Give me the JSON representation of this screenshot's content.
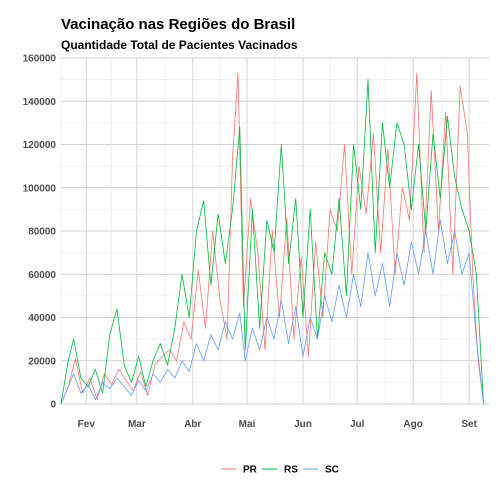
{
  "chart_data": {
    "type": "line",
    "title": "Vacinação nas Regiões do Brasil",
    "subtitle": "Quantidade Total de Pacientes Vacinados",
    "xlabel": "",
    "ylabel": "",
    "x_range": [
      "2021-01-18",
      "2021-09-12"
    ],
    "x_ticks": [
      {
        "date": "2021-02-01",
        "label": "Fev"
      },
      {
        "date": "2021-03-01",
        "label": "Mar"
      },
      {
        "date": "2021-04-01",
        "label": "Abr"
      },
      {
        "date": "2021-05-01",
        "label": "Mai"
      },
      {
        "date": "2021-06-01",
        "label": "Jun"
      },
      {
        "date": "2021-07-01",
        "label": "Jul"
      },
      {
        "date": "2021-08-01",
        "label": "Ago"
      },
      {
        "date": "2021-09-01",
        "label": "Set"
      }
    ],
    "ylim": [
      0,
      160000
    ],
    "y_ticks": [
      0,
      20000,
      40000,
      60000,
      80000,
      100000,
      120000,
      140000,
      160000
    ],
    "grid": true,
    "legend_position": "bottom",
    "series": [
      {
        "name": "PR",
        "color": "#F8766D",
        "points": [
          [
            "2021-01-18",
            0
          ],
          [
            "2021-01-22",
            8000
          ],
          [
            "2021-01-26",
            21000
          ],
          [
            "2021-01-30",
            5000
          ],
          [
            "2021-02-03",
            12000
          ],
          [
            "2021-02-07",
            2000
          ],
          [
            "2021-02-11",
            14000
          ],
          [
            "2021-02-15",
            9000
          ],
          [
            "2021-02-19",
            16000
          ],
          [
            "2021-02-23",
            11000
          ],
          [
            "2021-02-27",
            6000
          ],
          [
            "2021-03-03",
            15000
          ],
          [
            "2021-03-07",
            4000
          ],
          [
            "2021-03-11",
            18000
          ],
          [
            "2021-03-15",
            22000
          ],
          [
            "2021-03-19",
            25000
          ],
          [
            "2021-03-23",
            20000
          ],
          [
            "2021-03-27",
            38000
          ],
          [
            "2021-03-31",
            30000
          ],
          [
            "2021-04-04",
            62000
          ],
          [
            "2021-04-08",
            35000
          ],
          [
            "2021-04-12",
            80000
          ],
          [
            "2021-04-16",
            48000
          ],
          [
            "2021-04-20",
            30000
          ],
          [
            "2021-04-23",
            114000
          ],
          [
            "2021-04-26",
            153000
          ],
          [
            "2021-04-29",
            45000
          ],
          [
            "2021-05-03",
            95000
          ],
          [
            "2021-05-07",
            70000
          ],
          [
            "2021-05-11",
            25000
          ],
          [
            "2021-05-15",
            80000
          ],
          [
            "2021-05-19",
            40000
          ],
          [
            "2021-05-23",
            86000
          ],
          [
            "2021-05-27",
            30000
          ],
          [
            "2021-05-31",
            68000
          ],
          [
            "2021-06-04",
            22000
          ],
          [
            "2021-06-08",
            75000
          ],
          [
            "2021-06-12",
            40000
          ],
          [
            "2021-06-16",
            90000
          ],
          [
            "2021-06-20",
            80000
          ],
          [
            "2021-06-24",
            120000
          ],
          [
            "2021-06-28",
            60000
          ],
          [
            "2021-07-02",
            110000
          ],
          [
            "2021-07-06",
            88000
          ],
          [
            "2021-07-10",
            125000
          ],
          [
            "2021-07-14",
            70000
          ],
          [
            "2021-07-18",
            118000
          ],
          [
            "2021-07-22",
            60000
          ],
          [
            "2021-07-26",
            100000
          ],
          [
            "2021-07-30",
            85000
          ],
          [
            "2021-08-03",
            153000
          ],
          [
            "2021-08-07",
            70000
          ],
          [
            "2021-08-11",
            145000
          ],
          [
            "2021-08-15",
            80000
          ],
          [
            "2021-08-19",
            135000
          ],
          [
            "2021-08-23",
            60000
          ],
          [
            "2021-08-27",
            147000
          ],
          [
            "2021-08-31",
            125000
          ],
          [
            "2021-09-03",
            60000
          ],
          [
            "2021-09-06",
            20000
          ],
          [
            "2021-09-09",
            0
          ]
        ]
      },
      {
        "name": "RS",
        "color": "#00BA38",
        "points": [
          [
            "2021-01-18",
            0
          ],
          [
            "2021-01-22",
            20000
          ],
          [
            "2021-01-25",
            30000
          ],
          [
            "2021-01-29",
            12000
          ],
          [
            "2021-02-02",
            8000
          ],
          [
            "2021-02-06",
            16000
          ],
          [
            "2021-02-10",
            5000
          ],
          [
            "2021-02-14",
            32000
          ],
          [
            "2021-02-18",
            44000
          ],
          [
            "2021-02-22",
            18000
          ],
          [
            "2021-02-26",
            10000
          ],
          [
            "2021-03-02",
            22000
          ],
          [
            "2021-03-06",
            8000
          ],
          [
            "2021-03-10",
            20000
          ],
          [
            "2021-03-14",
            28000
          ],
          [
            "2021-03-18",
            18000
          ],
          [
            "2021-03-22",
            35000
          ],
          [
            "2021-03-26",
            60000
          ],
          [
            "2021-03-30",
            40000
          ],
          [
            "2021-04-03",
            80000
          ],
          [
            "2021-04-07",
            94000
          ],
          [
            "2021-04-11",
            55000
          ],
          [
            "2021-04-15",
            88000
          ],
          [
            "2021-04-19",
            65000
          ],
          [
            "2021-04-23",
            90000
          ],
          [
            "2021-04-27",
            128000
          ],
          [
            "2021-04-30",
            25000
          ],
          [
            "2021-05-04",
            90000
          ],
          [
            "2021-05-08",
            35000
          ],
          [
            "2021-05-12",
            85000
          ],
          [
            "2021-05-16",
            70000
          ],
          [
            "2021-05-20",
            120000
          ],
          [
            "2021-05-24",
            65000
          ],
          [
            "2021-05-28",
            95000
          ],
          [
            "2021-06-01",
            40000
          ],
          [
            "2021-06-05",
            90000
          ],
          [
            "2021-06-09",
            30000
          ],
          [
            "2021-06-13",
            70000
          ],
          [
            "2021-06-17",
            60000
          ],
          [
            "2021-06-21",
            95000
          ],
          [
            "2021-06-25",
            50000
          ],
          [
            "2021-06-29",
            120000
          ],
          [
            "2021-07-03",
            90000
          ],
          [
            "2021-07-07",
            150000
          ],
          [
            "2021-07-11",
            70000
          ],
          [
            "2021-07-15",
            130000
          ],
          [
            "2021-07-19",
            100000
          ],
          [
            "2021-07-23",
            130000
          ],
          [
            "2021-07-27",
            120000
          ],
          [
            "2021-07-31",
            90000
          ],
          [
            "2021-08-04",
            120000
          ],
          [
            "2021-08-08",
            80000
          ],
          [
            "2021-08-12",
            125000
          ],
          [
            "2021-08-16",
            95000
          ],
          [
            "2021-08-20",
            133000
          ],
          [
            "2021-08-24",
            105000
          ],
          [
            "2021-08-28",
            90000
          ],
          [
            "2021-09-01",
            80000
          ],
          [
            "2021-09-05",
            60000
          ],
          [
            "2021-09-09",
            0
          ]
        ]
      },
      {
        "name": "SC",
        "color": "#619CFF",
        "points": [
          [
            "2021-01-18",
            0
          ],
          [
            "2021-01-22",
            8000
          ],
          [
            "2021-01-25",
            14000
          ],
          [
            "2021-01-29",
            5000
          ],
          [
            "2021-02-02",
            9000
          ],
          [
            "2021-02-06",
            2000
          ],
          [
            "2021-02-10",
            10000
          ],
          [
            "2021-02-14",
            7000
          ],
          [
            "2021-02-18",
            12000
          ],
          [
            "2021-02-22",
            8000
          ],
          [
            "2021-02-26",
            4000
          ],
          [
            "2021-03-02",
            11000
          ],
          [
            "2021-03-06",
            6000
          ],
          [
            "2021-03-10",
            14000
          ],
          [
            "2021-03-14",
            10000
          ],
          [
            "2021-03-18",
            16000
          ],
          [
            "2021-03-22",
            12000
          ],
          [
            "2021-03-26",
            20000
          ],
          [
            "2021-03-30",
            15000
          ],
          [
            "2021-04-03",
            28000
          ],
          [
            "2021-04-07",
            20000
          ],
          [
            "2021-04-11",
            32000
          ],
          [
            "2021-04-15",
            25000
          ],
          [
            "2021-04-19",
            38000
          ],
          [
            "2021-04-23",
            30000
          ],
          [
            "2021-04-27",
            42000
          ],
          [
            "2021-04-30",
            20000
          ],
          [
            "2021-05-04",
            35000
          ],
          [
            "2021-05-08",
            25000
          ],
          [
            "2021-05-12",
            40000
          ],
          [
            "2021-05-16",
            30000
          ],
          [
            "2021-05-20",
            48000
          ],
          [
            "2021-05-24",
            28000
          ],
          [
            "2021-05-28",
            45000
          ],
          [
            "2021-06-01",
            22000
          ],
          [
            "2021-06-05",
            40000
          ],
          [
            "2021-06-09",
            30000
          ],
          [
            "2021-06-13",
            50000
          ],
          [
            "2021-06-17",
            38000
          ],
          [
            "2021-06-21",
            55000
          ],
          [
            "2021-06-25",
            40000
          ],
          [
            "2021-06-29",
            60000
          ],
          [
            "2021-07-03",
            45000
          ],
          [
            "2021-07-07",
            70000
          ],
          [
            "2021-07-11",
            50000
          ],
          [
            "2021-07-15",
            65000
          ],
          [
            "2021-07-19",
            45000
          ],
          [
            "2021-07-23",
            70000
          ],
          [
            "2021-07-27",
            55000
          ],
          [
            "2021-07-31",
            75000
          ],
          [
            "2021-08-04",
            60000
          ],
          [
            "2021-08-08",
            80000
          ],
          [
            "2021-08-12",
            60000
          ],
          [
            "2021-08-16",
            85000
          ],
          [
            "2021-08-20",
            65000
          ],
          [
            "2021-08-24",
            80000
          ],
          [
            "2021-08-28",
            60000
          ],
          [
            "2021-09-01",
            70000
          ],
          [
            "2021-09-05",
            30000
          ],
          [
            "2021-09-09",
            0
          ]
        ]
      }
    ]
  }
}
